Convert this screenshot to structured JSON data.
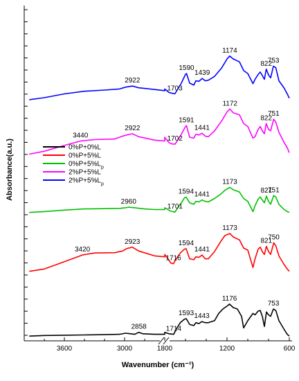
{
  "chart_data": {
    "type": "line",
    "title": "",
    "xlabel": "Wavenumber (cm⁻¹)",
    "ylabel": "Absorbance(a.u.)",
    "x_axis_reversed": true,
    "x_axis_break": [
      2600,
      1800
    ],
    "xlim": [
      4000,
      600
    ],
    "x_ticks": [
      {
        "value": 3600,
        "label": "3600"
      },
      {
        "value": 3000,
        "label": "3000"
      },
      {
        "value": 1800,
        "label": "1800"
      },
      {
        "value": 1200,
        "label": "1200"
      },
      {
        "value": 600,
        "label": "600"
      }
    ],
    "y_ticks_count": 28,
    "legend": {
      "placement": "left-middle",
      "entries": [
        {
          "label": "0%P+0%L",
          "subscript": "",
          "color": "#000000"
        },
        {
          "label": "0%P+5%L",
          "subscript": "",
          "color": "#ff0000"
        },
        {
          "label": "0%P+5%L",
          "subscript": "p",
          "color": "#00c000"
        },
        {
          "label": "2%P+5%L",
          "subscript": "",
          "color": "#ff00ff"
        },
        {
          "label": "2%P+5%L",
          "subscript": "p",
          "color": "#0000ff"
        }
      ]
    },
    "series": [
      {
        "legend_index": 4,
        "color": "#0000ff",
        "baseline": 0.8,
        "points": [
          [
            3950,
            0.05
          ],
          [
            3800,
            0.12
          ],
          [
            3600,
            0.25
          ],
          [
            3400,
            0.34
          ],
          [
            3200,
            0.38
          ],
          [
            3050,
            0.42
          ],
          [
            2990,
            0.48
          ],
          [
            2922,
            0.52
          ],
          [
            2860,
            0.46
          ],
          [
            2700,
            0.4
          ],
          [
            2600,
            0.36
          ],
          [
            1900,
            0.4
          ],
          [
            1800,
            0.42
          ],
          [
            1760,
            0.3
          ],
          [
            1740,
            0.28
          ],
          [
            1703,
            0.25
          ],
          [
            1680,
            0.38
          ],
          [
            1640,
            0.62
          ],
          [
            1600,
            0.92
          ],
          [
            1590,
            0.95
          ],
          [
            1560,
            0.62
          ],
          [
            1520,
            0.55
          ],
          [
            1500,
            0.7
          ],
          [
            1470,
            0.68
          ],
          [
            1439,
            0.78
          ],
          [
            1410,
            0.7
          ],
          [
            1380,
            0.72
          ],
          [
            1320,
            0.85
          ],
          [
            1250,
            1.15
          ],
          [
            1200,
            1.45
          ],
          [
            1174,
            1.55
          ],
          [
            1140,
            1.45
          ],
          [
            1080,
            1.35
          ],
          [
            1040,
            1.05
          ],
          [
            1000,
            0.95
          ],
          [
            950,
            0.6
          ],
          [
            930,
            0.75
          ],
          [
            900,
            0.92
          ],
          [
            880,
            1.0
          ],
          [
            860,
            0.88
          ],
          [
            840,
            0.75
          ],
          [
            822,
            1.1
          ],
          [
            800,
            0.9
          ],
          [
            780,
            0.8
          ],
          [
            753,
            1.2
          ],
          [
            730,
            1.15
          ],
          [
            700,
            0.7
          ],
          [
            650,
            0.45
          ],
          [
            620,
            0.25
          ],
          [
            600,
            0.1
          ]
        ],
        "peaks": [
          {
            "x": 2922,
            "label": "2922"
          },
          {
            "x": 1703,
            "label": "1703"
          },
          {
            "x": 1590,
            "label": "1590"
          },
          {
            "x": 1439,
            "label": "1439"
          },
          {
            "x": 1174,
            "label": "1174"
          },
          {
            "x": 822,
            "label": "822"
          },
          {
            "x": 753,
            "label": "753"
          }
        ]
      },
      {
        "legend_index": 3,
        "color": "#ff00ff",
        "baseline": 0.62,
        "points": [
          [
            3950,
            0.0
          ],
          [
            3800,
            0.1
          ],
          [
            3600,
            0.3
          ],
          [
            3440,
            0.45
          ],
          [
            3300,
            0.5
          ],
          [
            3100,
            0.52
          ],
          [
            3020,
            0.62
          ],
          [
            2980,
            0.66
          ],
          [
            2922,
            0.7
          ],
          [
            2860,
            0.6
          ],
          [
            2700,
            0.48
          ],
          [
            2600,
            0.45
          ],
          [
            1900,
            0.55
          ],
          [
            1800,
            0.58
          ],
          [
            1760,
            0.4
          ],
          [
            1740,
            0.36
          ],
          [
            1702,
            0.34
          ],
          [
            1680,
            0.45
          ],
          [
            1640,
            0.68
          ],
          [
            1600,
            0.95
          ],
          [
            1591,
            0.98
          ],
          [
            1560,
            0.58
          ],
          [
            1520,
            0.55
          ],
          [
            1500,
            0.68
          ],
          [
            1470,
            0.66
          ],
          [
            1441,
            0.72
          ],
          [
            1410,
            0.62
          ],
          [
            1380,
            0.6
          ],
          [
            1320,
            0.8
          ],
          [
            1250,
            1.15
          ],
          [
            1200,
            1.45
          ],
          [
            1172,
            1.55
          ],
          [
            1140,
            1.42
          ],
          [
            1080,
            1.35
          ],
          [
            1040,
            1.05
          ],
          [
            1000,
            0.95
          ],
          [
            950,
            0.55
          ],
          [
            930,
            0.6
          ],
          [
            900,
            0.85
          ],
          [
            880,
            0.95
          ],
          [
            860,
            0.8
          ],
          [
            840,
            0.7
          ],
          [
            822,
            1.05
          ],
          [
            800,
            0.85
          ],
          [
            780,
            0.8
          ],
          [
            751,
            1.2
          ],
          [
            730,
            1.1
          ],
          [
            700,
            0.75
          ],
          [
            650,
            0.4
          ],
          [
            620,
            0.22
          ],
          [
            600,
            0.05
          ]
        ],
        "peaks": [
          {
            "x": 3440,
            "label": "3440"
          },
          {
            "x": 2922,
            "label": "2922"
          },
          {
            "x": 1702,
            "label": "1702"
          },
          {
            "x": 1591,
            "label": "1591"
          },
          {
            "x": 1441,
            "label": "1441"
          },
          {
            "x": 1172,
            "label": "1172"
          },
          {
            "x": 822,
            "label": "822"
          },
          {
            "x": 751,
            "label": "751"
          }
        ]
      },
      {
        "legend_index": 2,
        "color": "#00c000",
        "baseline": 0.42,
        "points": [
          [
            3950,
            0.02
          ],
          [
            3800,
            0.05
          ],
          [
            3600,
            0.1
          ],
          [
            3400,
            0.14
          ],
          [
            3200,
            0.15
          ],
          [
            3050,
            0.16
          ],
          [
            2990,
            0.18
          ],
          [
            2960,
            0.2
          ],
          [
            2900,
            0.18
          ],
          [
            2800,
            0.14
          ],
          [
            2700,
            0.12
          ],
          [
            2600,
            0.12
          ],
          [
            1900,
            0.15
          ],
          [
            1800,
            0.18
          ],
          [
            1760,
            0.1
          ],
          [
            1740,
            0.06
          ],
          [
            1701,
            0.03
          ],
          [
            1680,
            0.15
          ],
          [
            1640,
            0.35
          ],
          [
            1610,
            0.52
          ],
          [
            1594,
            0.55
          ],
          [
            1560,
            0.35
          ],
          [
            1520,
            0.3
          ],
          [
            1500,
            0.4
          ],
          [
            1470,
            0.38
          ],
          [
            1441,
            0.45
          ],
          [
            1410,
            0.4
          ],
          [
            1380,
            0.38
          ],
          [
            1320,
            0.5
          ],
          [
            1260,
            0.65
          ],
          [
            1220,
            0.78
          ],
          [
            1173,
            0.88
          ],
          [
            1140,
            0.8
          ],
          [
            1080,
            0.72
          ],
          [
            1040,
            0.5
          ],
          [
            1000,
            0.4
          ],
          [
            950,
            0.05
          ],
          [
            930,
            0.25
          ],
          [
            900,
            0.48
          ],
          [
            880,
            0.55
          ],
          [
            860,
            0.45
          ],
          [
            840,
            0.35
          ],
          [
            821,
            0.58
          ],
          [
            800,
            0.4
          ],
          [
            780,
            0.3
          ],
          [
            751,
            0.6
          ],
          [
            730,
            0.55
          ],
          [
            700,
            0.3
          ],
          [
            650,
            0.12
          ],
          [
            620,
            0.05
          ],
          [
            600,
            0.02
          ]
        ],
        "peaks": [
          {
            "x": 2960,
            "label": "2960"
          },
          {
            "x": 1701,
            "label": "1701"
          },
          {
            "x": 1594,
            "label": "1594"
          },
          {
            "x": 1441,
            "label": "1441"
          },
          {
            "x": 1173,
            "label": "1173"
          },
          {
            "x": 821,
            "label": "821"
          },
          {
            "x": 751,
            "label": "751"
          }
        ]
      },
      {
        "legend_index": 1,
        "color": "#ff0000",
        "baseline": 0.22,
        "points": [
          [
            3950,
            0.02
          ],
          [
            3800,
            0.1
          ],
          [
            3600,
            0.35
          ],
          [
            3420,
            0.58
          ],
          [
            3300,
            0.65
          ],
          [
            3100,
            0.66
          ],
          [
            3020,
            0.72
          ],
          [
            2980,
            0.8
          ],
          [
            2923,
            0.85
          ],
          [
            2860,
            0.72
          ],
          [
            2700,
            0.55
          ],
          [
            2600,
            0.52
          ],
          [
            1900,
            0.58
          ],
          [
            1800,
            0.6
          ],
          [
            1760,
            0.4
          ],
          [
            1740,
            0.3
          ],
          [
            1716,
            0.28
          ],
          [
            1690,
            0.45
          ],
          [
            1650,
            0.65
          ],
          [
            1610,
            0.78
          ],
          [
            1594,
            0.8
          ],
          [
            1560,
            0.45
          ],
          [
            1520,
            0.42
          ],
          [
            1500,
            0.52
          ],
          [
            1470,
            0.5
          ],
          [
            1441,
            0.58
          ],
          [
            1410,
            0.45
          ],
          [
            1380,
            0.45
          ],
          [
            1320,
            0.7
          ],
          [
            1260,
            1.05
          ],
          [
            1220,
            1.25
          ],
          [
            1173,
            1.32
          ],
          [
            1140,
            1.2
          ],
          [
            1080,
            1.1
          ],
          [
            1040,
            0.82
          ],
          [
            1000,
            0.75
          ],
          [
            950,
            0.15
          ],
          [
            930,
            0.45
          ],
          [
            900,
            0.78
          ],
          [
            880,
            0.85
          ],
          [
            860,
            0.7
          ],
          [
            840,
            0.6
          ],
          [
            821,
            0.88
          ],
          [
            800,
            0.7
          ],
          [
            780,
            0.6
          ],
          [
            750,
            1.0
          ],
          [
            730,
            0.9
          ],
          [
            700,
            0.55
          ],
          [
            650,
            0.25
          ],
          [
            620,
            0.1
          ],
          [
            600,
            0.02
          ]
        ],
        "peaks": [
          {
            "x": 3420,
            "label": "3420"
          },
          {
            "x": 2923,
            "label": "2923"
          },
          {
            "x": 1716,
            "label": "1716"
          },
          {
            "x": 1594,
            "label": "1594"
          },
          {
            "x": 1441,
            "label": "1441"
          },
          {
            "x": 1173,
            "label": "1173"
          },
          {
            "x": 821,
            "label": "821"
          },
          {
            "x": 750,
            "label": "750"
          }
        ]
      },
      {
        "legend_index": 0,
        "color": "#000000",
        "baseline": 0.0,
        "points": [
          [
            3950,
            0.02
          ],
          [
            3800,
            0.04
          ],
          [
            3600,
            0.05
          ],
          [
            3400,
            0.06
          ],
          [
            3200,
            0.07
          ],
          [
            3050,
            0.08
          ],
          [
            2990,
            0.12
          ],
          [
            2940,
            0.1
          ],
          [
            2900,
            0.08
          ],
          [
            2858,
            0.15
          ],
          [
            2820,
            0.1
          ],
          [
            2700,
            0.08
          ],
          [
            2600,
            0.08
          ],
          [
            1900,
            0.12
          ],
          [
            1800,
            0.15
          ],
          [
            1760,
            0.1
          ],
          [
            1714,
            0.08
          ],
          [
            1690,
            0.25
          ],
          [
            1650,
            0.48
          ],
          [
            1610,
            0.6
          ],
          [
            1593,
            0.62
          ],
          [
            1560,
            0.42
          ],
          [
            1520,
            0.38
          ],
          [
            1500,
            0.48
          ],
          [
            1470,
            0.45
          ],
          [
            1443,
            0.52
          ],
          [
            1410,
            0.48
          ],
          [
            1380,
            0.48
          ],
          [
            1320,
            0.55
          ],
          [
            1280,
            0.8
          ],
          [
            1240,
            0.95
          ],
          [
            1200,
            1.05
          ],
          [
            1176,
            1.12
          ],
          [
            1140,
            1.0
          ],
          [
            1100,
            0.95
          ],
          [
            1060,
            0.7
          ],
          [
            1040,
            0.3
          ],
          [
            1000,
            0.55
          ],
          [
            950,
            0.8
          ],
          [
            930,
            0.75
          ],
          [
            900,
            0.88
          ],
          [
            880,
            0.9
          ],
          [
            860,
            0.7
          ],
          [
            840,
            0.35
          ],
          [
            820,
            0.85
          ],
          [
            800,
            0.75
          ],
          [
            780,
            0.7
          ],
          [
            753,
            0.95
          ],
          [
            730,
            0.9
          ],
          [
            700,
            0.55
          ],
          [
            650,
            0.25
          ],
          [
            620,
            0.08
          ],
          [
            600,
            0.02
          ]
        ],
        "peaks": [
          {
            "x": 2858,
            "label": "2858"
          },
          {
            "x": 1714,
            "label": "1714"
          },
          {
            "x": 1593,
            "label": "1593"
          },
          {
            "x": 1443,
            "label": "1443"
          },
          {
            "x": 1176,
            "label": "1176"
          },
          {
            "x": 753,
            "label": "753"
          }
        ]
      }
    ]
  }
}
